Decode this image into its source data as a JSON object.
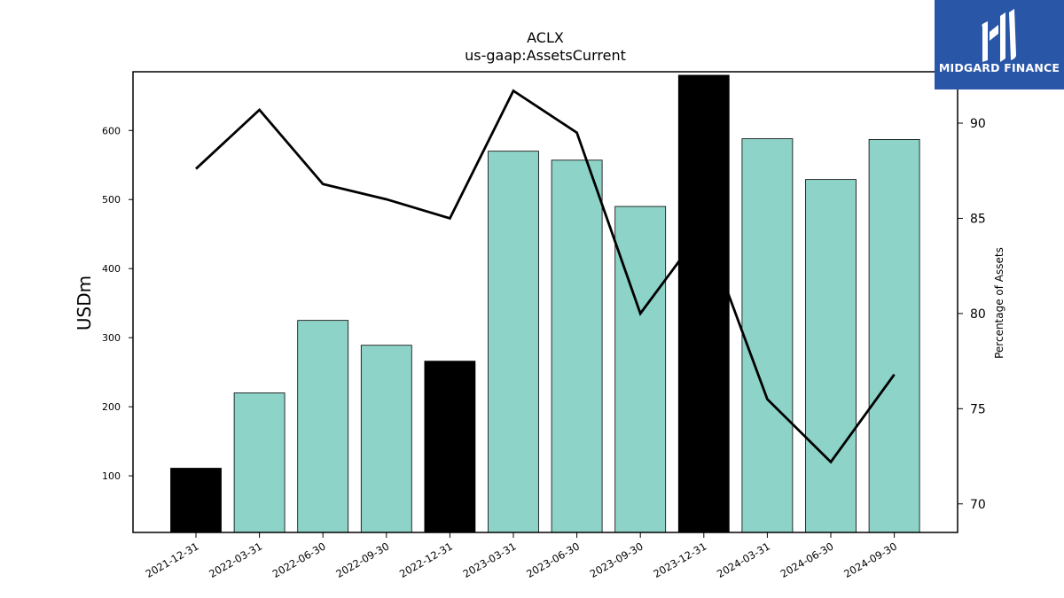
{
  "chart_data": {
    "type": "bar+line",
    "title": "ACLX",
    "subtitle": "us-gaap:AssetsCurrent",
    "ylabel": "USDm",
    "y2label": "Percentage of Assets",
    "categories": [
      "2021-12-31",
      "2022-03-31",
      "2022-06-30",
      "2022-09-30",
      "2022-12-31",
      "2023-03-31",
      "2023-06-30",
      "2023-09-30",
      "2023-12-31",
      "2024-03-31",
      "2024-06-30",
      "2024-09-30"
    ],
    "bar_values": [
      111,
      220,
      325,
      289,
      266,
      570,
      557,
      490,
      680,
      588,
      529,
      587
    ],
    "bar_colors": [
      "#000000",
      "#8dd3c7",
      "#8dd3c7",
      "#8dd3c7",
      "#000000",
      "#8dd3c7",
      "#8dd3c7",
      "#8dd3c7",
      "#000000",
      "#8dd3c7",
      "#8dd3c7",
      "#8dd3c7"
    ],
    "line_values": [
      87.6,
      90.7,
      86.8,
      86.0,
      85.0,
      91.7,
      89.5,
      80.0,
      84.5,
      75.5,
      72.2,
      76.8
    ],
    "ylim": [
      18,
      685
    ],
    "y2lim": [
      68.5,
      92.7
    ],
    "yticks": [
      100,
      200,
      300,
      400,
      500,
      600
    ],
    "y2ticks": [
      70,
      75,
      80,
      85,
      90
    ],
    "grid": false
  },
  "logo": {
    "text": "MIDGARD FINANCE"
  }
}
